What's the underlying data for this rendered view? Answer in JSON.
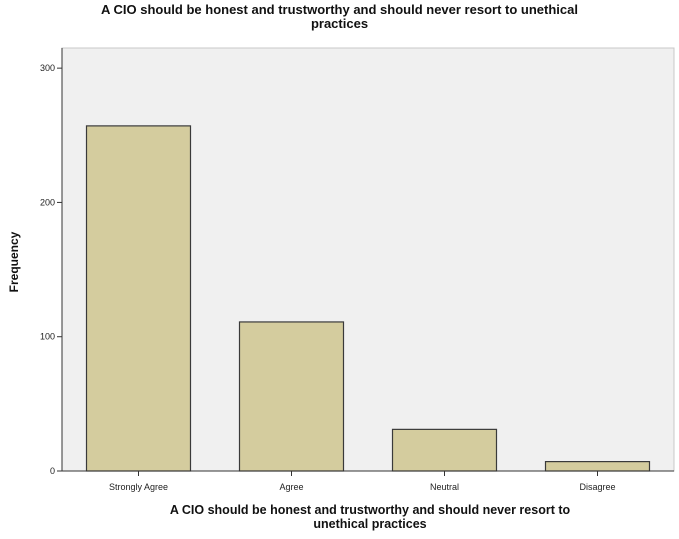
{
  "chart_data": {
    "type": "bar",
    "title_line1": "A CIO should be honest and trustworthy and should never resort to unethical",
    "title_line2": "practices",
    "xlabel_line1": "A CIO should be honest and trustworthy and should never resort to",
    "xlabel_line2": "unethical practices",
    "ylabel": "Frequency",
    "categories": [
      "Strongly Agree",
      "Agree",
      "Neutral",
      "Disagree"
    ],
    "values": [
      257,
      111,
      31,
      7
    ],
    "ylim": [
      0,
      315
    ],
    "yticks": [
      0,
      100,
      200,
      300
    ],
    "grid": false,
    "colors": {
      "bar_fill": "#d4cc9e",
      "bar_stroke": "#3a3a3a",
      "plot_background": "#f0f0f0",
      "axis": "#333333"
    }
  }
}
